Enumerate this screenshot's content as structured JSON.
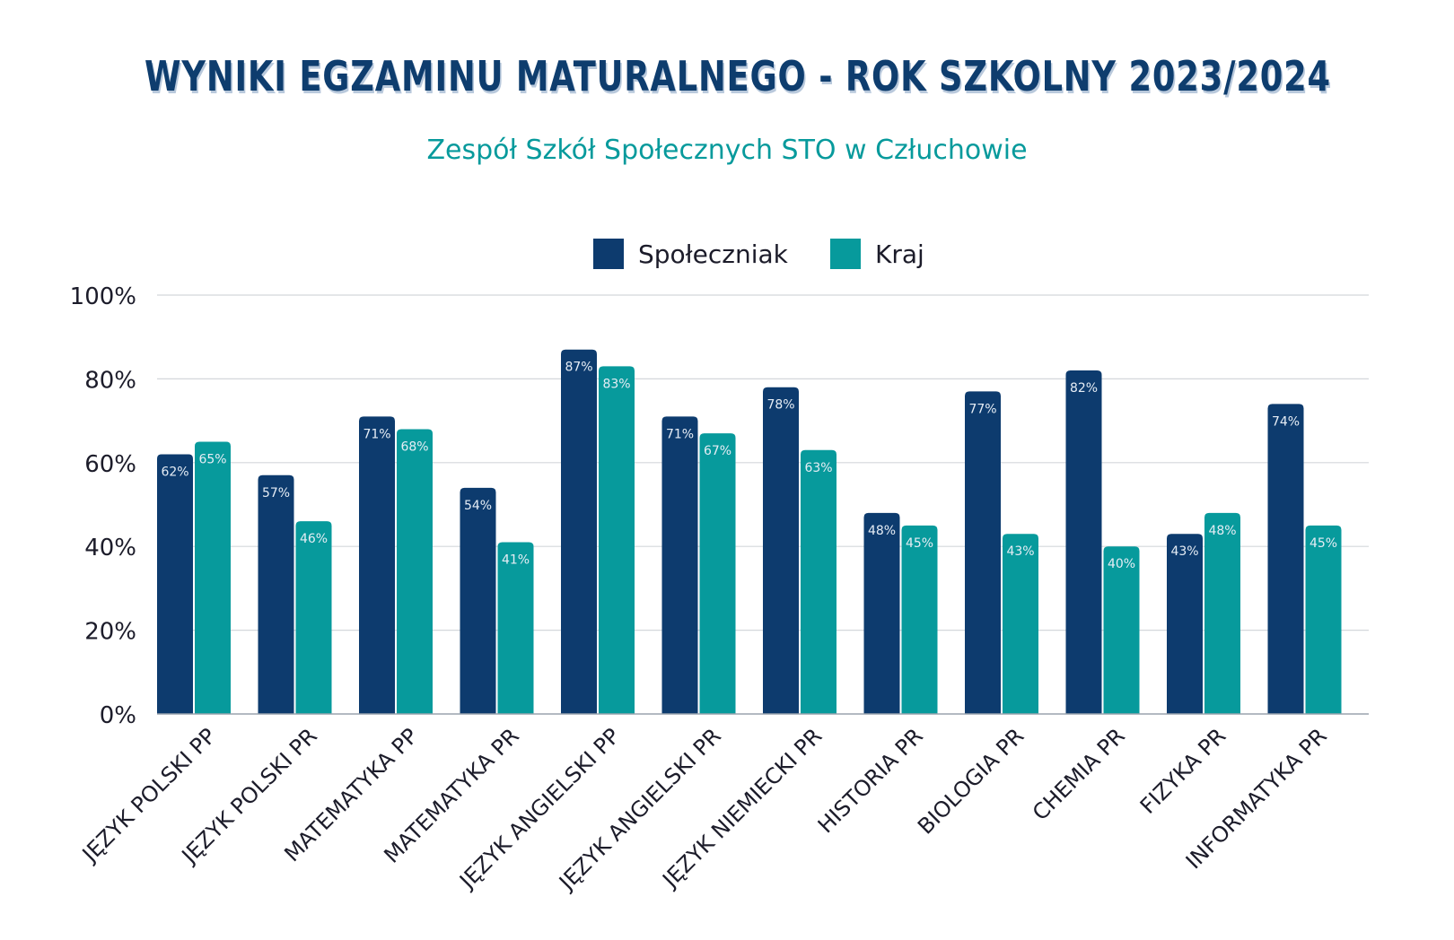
{
  "chart_data": {
    "type": "bar",
    "title": "WYNIKI EGZAMINU MATURALNEGO - ROK SZKOLNY 2023/2024",
    "subtitle": "Zespół Szkół Społecznych STO w Człuchowie",
    "categories": [
      "JĘZYK POLSKI PP",
      "JĘZYK POLSKI PR",
      "MATEMATYKA PP",
      "MATEMATYKA PR",
      "JĘZYK ANGIELSKI PP",
      "JĘZYK ANGIELSKI PR",
      "JĘZYK NIEMIECKI PR",
      "HISTORIA PR",
      "BIOLOGIA PR",
      "CHEMIA PR",
      "FIZYKA PR",
      "INFORMATYKA PR"
    ],
    "series": [
      {
        "name": "Społeczniak",
        "color": "#0d3b6e",
        "values": [
          62,
          57,
          71,
          54,
          87,
          71,
          78,
          48,
          77,
          82,
          43,
          74
        ]
      },
      {
        "name": "Kraj",
        "color": "#079a9c",
        "values": [
          65,
          46,
          68,
          41,
          83,
          67,
          63,
          45,
          43,
          40,
          48,
          45
        ]
      }
    ],
    "yticks": [
      "0%",
      "20%",
      "40%",
      "60%",
      "80%",
      "100%"
    ],
    "ylim": [
      0,
      100
    ],
    "value_suffix": "%",
    "grid": true,
    "legend_position": "top-center",
    "xlabel": "",
    "ylabel": ""
  }
}
